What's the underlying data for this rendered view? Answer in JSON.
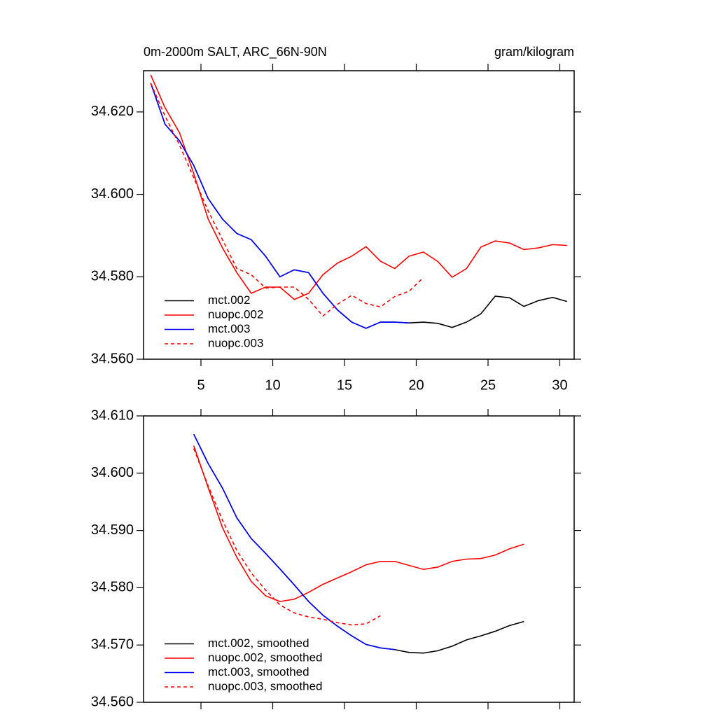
{
  "chart_data": [
    {
      "type": "line",
      "title": "0m-2000m SALT, ARC_66N-90N",
      "units": "gram/kilogram",
      "xlim": [
        1,
        31
      ],
      "ylim": [
        34.56,
        34.63
      ],
      "xtick_labels": true,
      "xticks": [
        5,
        10,
        15,
        20,
        25,
        30
      ],
      "yticks": [
        {
          "value": 34.56,
          "label": "34.560"
        },
        {
          "value": 34.58,
          "label": "34.580"
        },
        {
          "value": 34.6,
          "label": "34.600"
        },
        {
          "value": 34.62,
          "label": "34.620"
        }
      ],
      "legend": "lower left",
      "series": [
        {
          "name": "mct.002",
          "color": "#000000",
          "dashed": false,
          "x": [
            1.5,
            2.5,
            3.5,
            4.5,
            5.5,
            6.5,
            7.5,
            8.5,
            9.5,
            10.5,
            11.5,
            12.5,
            13.5,
            14.5,
            15.5,
            16.5,
            17.5,
            18.5,
            19.5,
            20.5,
            21.5,
            22.5,
            23.5,
            24.5,
            25.5,
            26.5,
            27.5,
            28.5,
            29.5,
            30.5
          ],
          "values": [
            34.627,
            34.617,
            34.613,
            34.607,
            34.599,
            34.594,
            34.5905,
            34.589,
            34.585,
            34.58,
            34.5817,
            34.581,
            34.576,
            34.572,
            34.569,
            34.5675,
            34.569,
            34.569,
            34.5688,
            34.569,
            34.5687,
            34.5677,
            34.569,
            34.571,
            34.5753,
            34.5749,
            34.5728,
            34.5742,
            34.575,
            34.574
          ]
        },
        {
          "name": "nuopc.002",
          "color": "#ff0000",
          "dashed": false,
          "x": [
            1.5,
            2.5,
            3.5,
            4.5,
            5.5,
            6.5,
            7.5,
            8.5,
            9.5,
            10.5,
            11.5,
            12.5,
            13.5,
            14.5,
            15.5,
            16.5,
            17.5,
            18.5,
            19.5,
            20.5,
            21.5,
            22.5,
            23.5,
            24.5,
            25.5,
            26.5,
            27.5,
            28.5,
            29.5,
            30.5
          ],
          "values": [
            34.629,
            34.621,
            34.615,
            34.605,
            34.594,
            34.587,
            34.581,
            34.576,
            34.5775,
            34.5775,
            34.5745,
            34.576,
            34.5805,
            34.5833,
            34.585,
            34.5873,
            34.5838,
            34.582,
            34.585,
            34.586,
            34.5837,
            34.5799,
            34.582,
            34.5872,
            34.5887,
            34.5882,
            34.5866,
            34.587,
            34.5878,
            34.5876
          ]
        },
        {
          "name": "mct.003",
          "color": "#0000ff",
          "dashed": false,
          "x": [
            1.5,
            2.5,
            3.5,
            4.5,
            5.5,
            6.5,
            7.5,
            8.5,
            9.5,
            10.5,
            11.5,
            12.5,
            13.5,
            14.5,
            15.5,
            16.5,
            17.5,
            18.5,
            19.5
          ],
          "values": [
            34.627,
            34.617,
            34.613,
            34.607,
            34.599,
            34.594,
            34.5905,
            34.589,
            34.585,
            34.58,
            34.5817,
            34.581,
            34.576,
            34.572,
            34.569,
            34.5675,
            34.569,
            34.569,
            34.5688
          ]
        },
        {
          "name": "nuopc.003",
          "color": "#ff0000",
          "dashed": true,
          "x": [
            1.5,
            2.5,
            3.5,
            4.5,
            5.5,
            6.5,
            7.5,
            8.5,
            9.5,
            10.5,
            11.5,
            12.5,
            13.5,
            14.5,
            15.5,
            16.5,
            17.5,
            18.5,
            19.5,
            20.5
          ],
          "values": [
            34.627,
            34.619,
            34.612,
            34.604,
            34.596,
            34.589,
            34.582,
            34.5805,
            34.5773,
            34.5775,
            34.5775,
            34.5745,
            34.5705,
            34.5733,
            34.5755,
            34.5735,
            34.5727,
            34.5752,
            34.5765,
            34.5798
          ]
        }
      ]
    },
    {
      "type": "line",
      "xlim": [
        1,
        31
      ],
      "ylim": [
        34.56,
        34.61
      ],
      "xtick_labels": false,
      "xticks": [
        5,
        10,
        15,
        20,
        25,
        30
      ],
      "yticks": [
        {
          "value": 34.56,
          "label": "34.560"
        },
        {
          "value": 34.57,
          "label": "34.570"
        },
        {
          "value": 34.58,
          "label": "34.580"
        },
        {
          "value": 34.59,
          "label": "34.590"
        },
        {
          "value": 34.6,
          "label": "34.600"
        },
        {
          "value": 34.61,
          "label": "34.610"
        }
      ],
      "legend": "lower left",
      "series": [
        {
          "name": "mct.002, smoothed",
          "color": "#000000",
          "dashed": false,
          "x": [
            4.5,
            5.5,
            6.5,
            7.5,
            8.5,
            9.5,
            10.5,
            11.5,
            12.5,
            13.5,
            14.5,
            15.5,
            16.5,
            17.5,
            18.5,
            19.5,
            20.5,
            21.5,
            22.5,
            23.5,
            24.5,
            25.5,
            26.5,
            27.5
          ],
          "values": [
            34.6068,
            34.6017,
            34.5974,
            34.5922,
            34.5886,
            34.586,
            34.5833,
            34.5805,
            34.5776,
            34.5752,
            34.5733,
            34.5716,
            34.5701,
            34.5695,
            34.5692,
            34.5687,
            34.5686,
            34.569,
            34.5698,
            34.5709,
            34.5716,
            34.5724,
            34.5734,
            34.5741
          ]
        },
        {
          "name": "nuopc.002, smoothed",
          "color": "#ff0000",
          "dashed": false,
          "x": [
            4.5,
            5.5,
            6.5,
            7.5,
            8.5,
            9.5,
            10.5,
            11.5,
            12.5,
            13.5,
            14.5,
            15.5,
            16.5,
            17.5,
            18.5,
            19.5,
            20.5,
            21.5,
            22.5,
            23.5,
            24.5,
            25.5,
            26.5,
            27.5
          ],
          "values": [
            34.6048,
            34.5975,
            34.5905,
            34.5853,
            34.5811,
            34.5786,
            34.5776,
            34.578,
            34.5792,
            34.5806,
            34.5817,
            34.5828,
            34.584,
            34.5846,
            34.5846,
            34.5839,
            34.5832,
            34.5836,
            34.5846,
            34.585,
            34.5851,
            34.5857,
            34.5868,
            34.5876
          ]
        },
        {
          "name": "mct.003, smoothed",
          "color": "#0000ff",
          "dashed": false,
          "x": [
            4.5,
            5.5,
            6.5,
            7.5,
            8.5,
            9.5,
            10.5,
            11.5,
            12.5,
            13.5,
            14.5,
            15.5,
            16.5,
            17.5,
            18.5
          ],
          "values": [
            34.6068,
            34.6017,
            34.5974,
            34.5922,
            34.5886,
            34.586,
            34.5833,
            34.5805,
            34.5776,
            34.5752,
            34.5733,
            34.5716,
            34.5701,
            34.5695,
            34.5692
          ]
        },
        {
          "name": "nuopc.003, smoothed",
          "color": "#ff0000",
          "dashed": true,
          "x": [
            4.5,
            5.5,
            6.5,
            7.5,
            8.5,
            9.5,
            10.5,
            11.5,
            12.5,
            13.5,
            14.5,
            15.5,
            16.5,
            17.5
          ],
          "values": [
            34.6043,
            34.5978,
            34.5918,
            34.5865,
            34.5826,
            34.5796,
            34.577,
            34.5756,
            34.5749,
            34.5745,
            34.5739,
            34.5735,
            34.5737,
            34.5751
          ]
        }
      ]
    }
  ]
}
